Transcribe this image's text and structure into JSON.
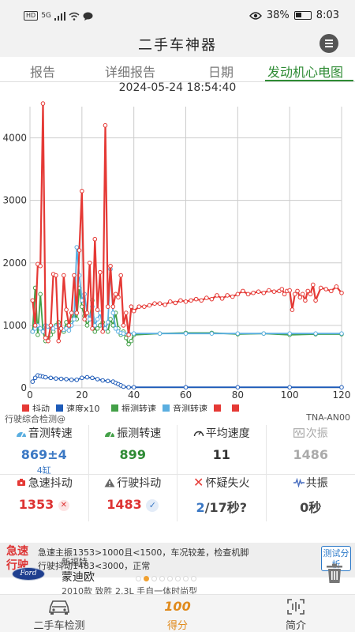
{
  "status_bar": {
    "network": "5G",
    "battery": "38%",
    "battery_level": 0.38,
    "time": "8:03",
    "hd_label": "HD"
  },
  "header": {
    "title": "二手车神器",
    "menu_icon": "hamburger-icon"
  },
  "tabs": [
    {
      "label": "报告",
      "active": false
    },
    {
      "label": "详细报告",
      "active": false
    },
    {
      "label": "日期",
      "active": false
    },
    {
      "label": "发动机心电图",
      "active": true
    }
  ],
  "timestamp": "2024-05-24 18:54:40",
  "chart_data": {
    "type": "line",
    "title": "",
    "xlabel": "",
    "ylabel": "",
    "xlim": [
      0,
      120
    ],
    "ylim": [
      0,
      4500
    ],
    "x_ticks": [
      "0",
      "20",
      "40",
      "60",
      "80",
      "100",
      "120"
    ],
    "y_ticks": [
      "0",
      "1000",
      "2000",
      "3000",
      "4000"
    ],
    "grid": true,
    "legend_position": "bottom",
    "legend": [
      {
        "name": "抖动",
        "color": "#e53935"
      },
      {
        "name": "速度x10",
        "color": "#1e5bb8"
      },
      {
        "name": "振测转速",
        "color": "#43a047"
      },
      {
        "name": "音测转速",
        "color": "#5aaee0"
      },
      {
        "name": "",
        "color": "#e53935"
      },
      {
        "name": "",
        "color": "#e53935"
      }
    ],
    "series": [
      {
        "name": "抖动",
        "color": "#e53935",
        "x": [
          1,
          2,
          3,
          4,
          5,
          6,
          7,
          8,
          9,
          10,
          11,
          12,
          13,
          14,
          15,
          16,
          17,
          18,
          19,
          20,
          21,
          22,
          23,
          24,
          25,
          26,
          27,
          28,
          29,
          30,
          31,
          32,
          33,
          34,
          35,
          36,
          37,
          38,
          39,
          40,
          42,
          44,
          46,
          48,
          50,
          52,
          54,
          56,
          58,
          60,
          62,
          64,
          66,
          68,
          70,
          72,
          74,
          76,
          78,
          80,
          82,
          84,
          86,
          88,
          90,
          92,
          94,
          96,
          97,
          98,
          99,
          100,
          101,
          102,
          103,
          104,
          105,
          106,
          107,
          108,
          109,
          110,
          112,
          114,
          116,
          118,
          120
        ],
        "y": [
          1400,
          1000,
          1980,
          1950,
          4550,
          800,
          750,
          1000,
          1820,
          1800,
          750,
          950,
          1800,
          1250,
          1000,
          1200,
          1800,
          1200,
          2200,
          3150,
          1100,
          1200,
          2000,
          950,
          2380,
          1250,
          1850,
          900,
          4200,
          1300,
          1950,
          1300,
          1500,
          1450,
          1800,
          1000,
          1200,
          850,
          1300,
          1230,
          1300,
          1300,
          1320,
          1350,
          1350,
          1330,
          1380,
          1360,
          1400,
          1380,
          1400,
          1420,
          1400,
          1440,
          1420,
          1480,
          1430,
          1480,
          1460,
          1500,
          1550,
          1500,
          1520,
          1540,
          1520,
          1560,
          1540,
          1550,
          1580,
          1500,
          1550,
          1560,
          1250,
          1500,
          1550,
          1450,
          1500,
          1400,
          1550,
          1500,
          1650,
          1400,
          1600,
          1580,
          1550,
          1620,
          1520
        ]
      },
      {
        "name": "速度x10",
        "color": "#1e5bb8",
        "x": [
          1,
          2,
          3,
          4,
          5,
          6,
          8,
          10,
          12,
          14,
          16,
          18,
          20,
          22,
          24,
          26,
          28,
          30,
          32,
          33,
          34,
          35,
          36,
          38,
          40,
          60,
          80,
          100,
          120
        ],
        "y": [
          100,
          160,
          200,
          190,
          180,
          170,
          160,
          150,
          145,
          140,
          130,
          130,
          160,
          170,
          160,
          140,
          120,
          110,
          100,
          80,
          60,
          40,
          20,
          10,
          10,
          10,
          10,
          10,
          10
        ]
      },
      {
        "name": "振测转速",
        "color": "#43a047",
        "x": [
          1,
          2,
          3,
          4,
          5,
          6,
          7,
          8,
          9,
          10,
          11,
          12,
          13,
          14,
          15,
          16,
          17,
          18,
          19,
          20,
          21,
          22,
          23,
          24,
          25,
          26,
          27,
          28,
          29,
          30,
          31,
          32,
          33,
          34,
          35,
          36,
          37,
          38,
          39,
          40,
          50,
          60,
          70,
          80,
          90,
          100,
          110,
          120
        ],
        "y": [
          900,
          1600,
          850,
          1500,
          900,
          750,
          800,
          850,
          900,
          1000,
          1050,
          950,
          900,
          1050,
          1000,
          1100,
          1200,
          1100,
          1600,
          1300,
          1150,
          1000,
          1100,
          1400,
          900,
          950,
          1000,
          1050,
          950,
          900,
          1100,
          1000,
          1200,
          950,
          850,
          900,
          800,
          700,
          750,
          850,
          870,
          880,
          880,
          860,
          870,
          850,
          860,
          860
        ]
      },
      {
        "name": "音测转速",
        "color": "#5aaee0",
        "x": [
          1,
          2,
          3,
          4,
          5,
          6,
          7,
          8,
          9,
          10,
          11,
          12,
          13,
          14,
          15,
          16,
          17,
          18,
          19,
          20,
          21,
          22,
          23,
          24,
          25,
          26,
          27,
          28,
          29,
          30,
          31,
          32,
          33,
          34,
          35,
          36,
          38,
          40,
          50,
          60,
          70,
          80,
          90,
          100,
          110,
          120
        ],
        "y": [
          900,
          950,
          1000,
          950,
          900,
          1000,
          980,
          960,
          950,
          980,
          1000,
          950,
          930,
          950,
          920,
          1000,
          1100,
          2250,
          1800,
          1400,
          1500,
          1200,
          1100,
          1300,
          1000,
          1100,
          1200,
          1000,
          950,
          1050,
          1900,
          1200,
          950,
          900,
          880,
          870,
          870,
          870,
          870,
          870,
          870,
          870,
          870,
          870,
          870,
          870
        ]
      }
    ]
  },
  "chart_footer": {
    "left": "行驶综合检测@",
    "right": "TNA-AN00"
  },
  "metrics_row1": [
    {
      "label": "音测转速",
      "value": "869±4",
      "sub": "4缸",
      "color": "#3b78c4",
      "icon": "gauge-icon",
      "faded": false
    },
    {
      "label": "振测转速",
      "value": "899",
      "color": "#2e8b34",
      "icon": "gauge-icon",
      "faded": false
    },
    {
      "label": "平均速度",
      "value": "11",
      "color": "#333333",
      "icon": "speedometer-icon",
      "faded": false
    },
    {
      "label": "次振",
      "value": "1486",
      "color": "#aaaaaa",
      "icon": "wave-box-icon",
      "faded": true
    }
  ],
  "metrics_row2": [
    {
      "label": "急速抖动",
      "value": "1353",
      "color": "#d33333",
      "icon": "engine-icon",
      "badge": "x"
    },
    {
      "label": "行驶抖动",
      "value": "1483",
      "color": "#d33333",
      "icon": "warning-icon",
      "badge": "check"
    },
    {
      "label": "怀疑失火",
      "value_a": "2",
      "value_b": "/17秒?",
      "color_a": "#3b78c4",
      "color_b": "#444444",
      "icon": "cross-icon"
    },
    {
      "label": "共振",
      "value": "0秒",
      "color": "#444444",
      "icon": "resonance-icon"
    }
  ],
  "summary": {
    "tag": "急速行驶",
    "line1": "急速主振1353>1000且<1500，车况较差，检查机脚",
    "line2": "行驶抖动1483<3000，正常",
    "button": "测试分析"
  },
  "car": {
    "logo_text": "Ford",
    "brand": "新福特",
    "model": "蒙迪欧",
    "detail": "2010款 致胜 2.3L 手自一体时尚型",
    "page_dots": 8,
    "active_dot": 1
  },
  "bottom_nav": [
    {
      "label": "二手车检测",
      "icon": "car-icon",
      "active": false
    },
    {
      "label": "得分",
      "icon": "score-100-icon",
      "active": true,
      "icon_text": "100"
    },
    {
      "label": "简介",
      "icon": "scan-icon",
      "active": false
    }
  ]
}
